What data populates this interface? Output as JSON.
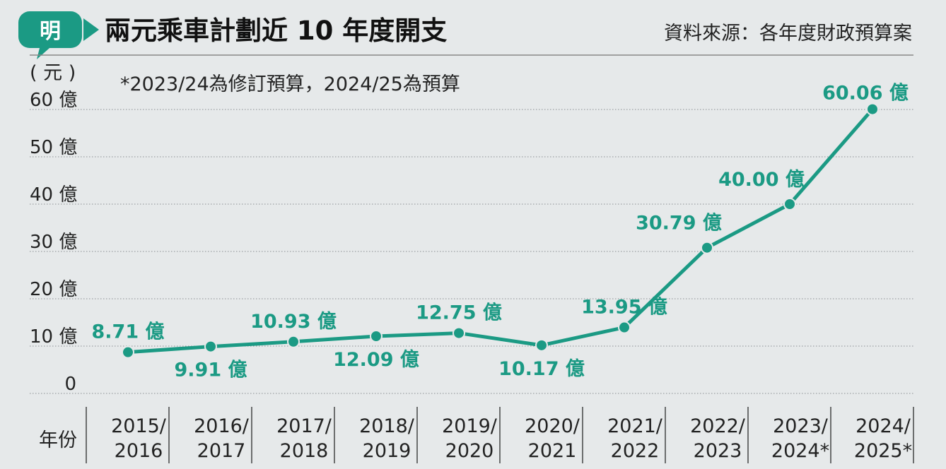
{
  "header": {
    "logo_glyph": "明",
    "title": "兩元乘車計劃近 10 年度開支",
    "source": "資料來源：各年度財政預算案"
  },
  "colors": {
    "accent": "#1b9a84",
    "background": "#e6e9ea",
    "text": "#222222"
  },
  "chart_data": {
    "type": "line",
    "unit_label": "( 元 )",
    "note": "*2023/24為修訂預算，2024/25為預算",
    "xlabel": "年份",
    "ylabel": "",
    "ylim": [
      0,
      60
    ],
    "yticks": [
      {
        "value": 0,
        "label": "0"
      },
      {
        "value": 10,
        "label": "10 億"
      },
      {
        "value": 20,
        "label": "20 億"
      },
      {
        "value": 30,
        "label": "30 億"
      },
      {
        "value": 40,
        "label": "40 億"
      },
      {
        "value": 50,
        "label": "50 億"
      },
      {
        "value": 60,
        "label": "60 億"
      }
    ],
    "categories": [
      [
        "2015/",
        "2016"
      ],
      [
        "2016/",
        "2017"
      ],
      [
        "2017/",
        "2018"
      ],
      [
        "2018/",
        "2019"
      ],
      [
        "2019/",
        "2020"
      ],
      [
        "2020/",
        "2021"
      ],
      [
        "2021/",
        "2022"
      ],
      [
        "2022/",
        "2023"
      ],
      [
        "2023/",
        "2024*"
      ],
      [
        "2024/",
        "2025*"
      ]
    ],
    "values": [
      8.71,
      9.91,
      10.93,
      12.09,
      12.75,
      10.17,
      13.95,
      30.79,
      40.0,
      60.06
    ],
    "data_labels": [
      "8.71 億",
      "9.91 億",
      "10.93 億",
      "12.09 億",
      "12.75 億",
      "10.17 億",
      "13.95 億",
      "30.79 億",
      "40.00 億",
      "60.06 億"
    ],
    "label_sides": [
      "above",
      "below",
      "above",
      "below",
      "above",
      "below",
      "above",
      "above",
      "above",
      "above"
    ],
    "grid": true,
    "legend": "none"
  }
}
